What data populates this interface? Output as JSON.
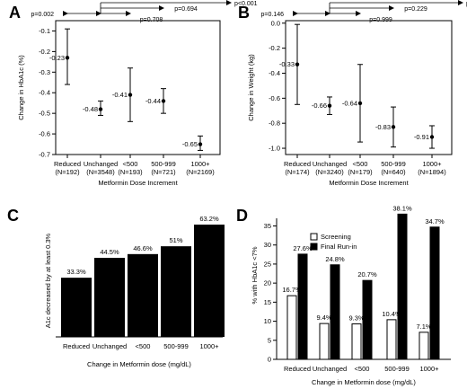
{
  "chart_data": [
    {
      "panel": "A",
      "type": "scatter",
      "xlabel": "Metformin Dose Increment",
      "ylabel": "Change in HbA1c (%)",
      "categories": [
        "Reduced",
        "Unchanged",
        "<500",
        "500-999",
        "1000+"
      ],
      "ns": [
        "(N=192)",
        "(N=3548)",
        "(N=193)",
        "(N=721)",
        "(N=2169)"
      ],
      "values": [
        -0.23,
        -0.48,
        -0.41,
        -0.44,
        -0.65
      ],
      "value_labels": [
        "-0.23",
        "-0.48",
        "-0.41",
        "-0.44",
        "-0.65"
      ],
      "ci_low": [
        -0.36,
        -0.51,
        -0.54,
        -0.5,
        -0.68
      ],
      "ci_high": [
        -0.09,
        -0.44,
        -0.28,
        -0.38,
        -0.61
      ],
      "ylim": [
        -0.7,
        -0.05
      ],
      "yticks": [
        -0.1,
        -0.2,
        -0.3,
        -0.4,
        -0.5,
        -0.6,
        -0.7
      ],
      "ytick_labels": [
        "-0.1",
        "-0.2",
        "-0.3",
        "-0.4",
        "-0.5",
        "-0.6",
        "-0.7"
      ],
      "pvalues": [
        {
          "label": "p=0.002",
          "from": 0,
          "to": 1
        },
        {
          "label": "p=0.708",
          "from": 1,
          "to": 2
        },
        {
          "label": "p=0.694",
          "from": 1,
          "to": 3
        },
        {
          "label": "p<0.001",
          "from": 1,
          "to": 4
        }
      ]
    },
    {
      "panel": "B",
      "type": "scatter",
      "xlabel": "Metformin Dose Increment",
      "ylabel": "Change in Weight (kg)",
      "categories": [
        "Reduced",
        "Unchanged",
        "<500",
        "500-999",
        "1000+"
      ],
      "ns": [
        "(N=174)",
        "(N=3240)",
        "(N=179)",
        "(N=640)",
        "(N=1894)"
      ],
      "values": [
        -0.33,
        -0.66,
        -0.64,
        -0.83,
        -0.91
      ],
      "value_labels": [
        "-0.33",
        "-0.66",
        "-0.64",
        "-0.83",
        "-0.91"
      ],
      "ci_low": [
        -0.65,
        -0.73,
        -0.95,
        -0.99,
        -1.0
      ],
      "ci_high": [
        -0.01,
        -0.59,
        -0.33,
        -0.67,
        -0.82
      ],
      "ylim": [
        -1.05,
        0.02
      ],
      "yticks": [
        0.0,
        -0.2,
        -0.4,
        -0.6,
        -0.8,
        -1.0
      ],
      "ytick_labels": [
        "0.0",
        "-0.2",
        "-0.4",
        "-0.6",
        "-0.8",
        "-1.0"
      ],
      "pvalues": [
        {
          "label": "p=0.146",
          "from": 0,
          "to": 1
        },
        {
          "label": "p=0.999",
          "from": 1,
          "to": 2
        },
        {
          "label": "p=0.229",
          "from": 1,
          "to": 3
        },
        {
          "label": "p<0.001",
          "from": 1,
          "to": 4
        }
      ]
    },
    {
      "panel": "C",
      "type": "bar",
      "xlabel": "Change in Metformin dose (mg/dL)",
      "ylabel": "A1c decreased by at least 0.3%",
      "categories": [
        "Reduced",
        "Unchanged",
        "<500",
        "500-999",
        "1000+"
      ],
      "values": [
        33.3,
        44.5,
        46.6,
        51,
        63.2
      ],
      "value_labels": [
        "33.3%",
        "44.5%",
        "46.6%",
        "51%",
        "63.2%"
      ],
      "ylim": [
        0,
        63.2
      ]
    },
    {
      "panel": "D",
      "type": "bar",
      "xlabel": "Change in Metformin dose (mg/dL)",
      "ylabel": "% with HbA1c <7%",
      "categories": [
        "Reduced",
        "Unchanged",
        "<500",
        "500-999",
        "1000+"
      ],
      "series": [
        {
          "name": "Screening",
          "values": [
            16.7,
            9.4,
            9.3,
            10.4,
            7.1
          ],
          "labels": [
            "16.7%",
            "9.4%",
            "9.3%",
            "10.4%",
            "7.1%"
          ],
          "color": "#ffffff"
        },
        {
          "name": "Final Run-in",
          "values": [
            27.6,
            24.8,
            20.7,
            38.1,
            34.7
          ],
          "labels": [
            "27.6%",
            "24.8%",
            "20.7%",
            "38.1%",
            "34.7%"
          ],
          "color": "#000000"
        }
      ],
      "ylim": [
        0,
        37
      ],
      "yticks": [
        0,
        5,
        10,
        15,
        20,
        25,
        30,
        35
      ],
      "ytick_labels": [
        "0",
        "5",
        "10",
        "15",
        "20",
        "25",
        "30",
        "35"
      ],
      "legend": "top-left"
    }
  ]
}
